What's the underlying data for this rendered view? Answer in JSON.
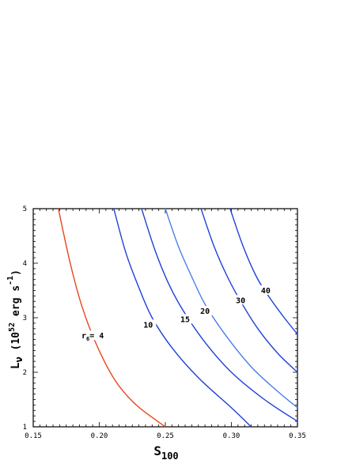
{
  "chart_data": {
    "type": "line",
    "xlabel": {
      "main": "S",
      "sub": "100"
    },
    "ylabel": {
      "pre": "L",
      "nu": "ν",
      "text": "  (10",
      "sup1": "52",
      "unit": " erg s",
      "sup2": "-1",
      "close": ")"
    },
    "xlim": [
      0.15,
      0.35
    ],
    "ylim": [
      1,
      5
    ],
    "x_ticks": [
      "0.15",
      "0.20",
      "0.25",
      "0.30",
      "0.35"
    ],
    "y_ticks": [
      "1",
      "2",
      "3",
      "4",
      "5"
    ],
    "grid": false,
    "series": [
      {
        "name": "r6= 4",
        "label_main": "r",
        "label_sub": "6",
        "label_rest": "= 4",
        "color": "#e8441c",
        "x": [
          0.169,
          0.178,
          0.187,
          0.198,
          0.212,
          0.228,
          0.25
        ],
        "y": [
          5.0,
          4.0,
          3.2,
          2.5,
          1.85,
          1.4,
          1.0
        ],
        "label_at": [
          0.195,
          2.65
        ]
      },
      {
        "name": "10",
        "label_main": "10",
        "color": "#1f3fd9",
        "x": [
          0.211,
          0.22,
          0.23,
          0.24,
          0.255,
          0.275,
          0.3,
          0.315
        ],
        "y": [
          5.0,
          4.2,
          3.55,
          3.0,
          2.45,
          1.9,
          1.35,
          1.0
        ],
        "label_at": [
          0.237,
          2.85
        ]
      },
      {
        "name": "15",
        "label_main": "15",
        "color": "#1f3fd9",
        "x": [
          0.232,
          0.242,
          0.252,
          0.263,
          0.28,
          0.3,
          0.325,
          0.35
        ],
        "y": [
          5.0,
          4.25,
          3.65,
          3.15,
          2.55,
          2.0,
          1.5,
          1.1
        ],
        "label_at": [
          0.265,
          2.95
        ]
      },
      {
        "name": "20",
        "label_main": "20",
        "color": "#4a7ee8",
        "x": [
          0.25,
          0.26,
          0.27,
          0.28,
          0.295,
          0.315,
          0.335,
          0.35
        ],
        "y": [
          5.0,
          4.3,
          3.75,
          3.25,
          2.7,
          2.1,
          1.65,
          1.35
        ],
        "label_at": [
          0.28,
          3.1
        ]
      },
      {
        "name": "30",
        "label_main": "30",
        "color": "#1f3fd9",
        "x": [
          0.277,
          0.287,
          0.297,
          0.307,
          0.32,
          0.335,
          0.35
        ],
        "y": [
          5.0,
          4.3,
          3.75,
          3.3,
          2.8,
          2.35,
          2.0
        ],
        "label_at": [
          0.307,
          3.3
        ]
      },
      {
        "name": "40",
        "label_main": "40",
        "color": "#1f3fd9",
        "x": [
          0.299,
          0.309,
          0.319,
          0.328,
          0.34,
          0.35
        ],
        "y": [
          5.0,
          4.3,
          3.75,
          3.4,
          3.0,
          2.7
        ],
        "label_at": [
          0.326,
          3.48
        ]
      }
    ]
  }
}
